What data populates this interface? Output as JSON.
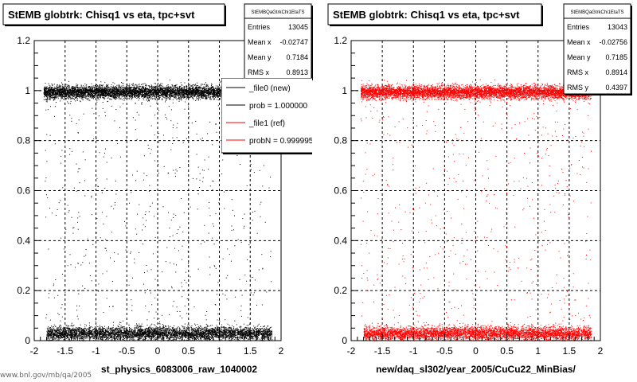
{
  "chart_data": [
    {
      "type": "scatter",
      "title": "StEMB globtrk: Chisq1 vs eta, tpc+svt",
      "xlabel": "st_physics_6083006_raw_1040002",
      "ylabel": "",
      "xlim": [
        -2,
        2
      ],
      "ylim": [
        0,
        1.2
      ],
      "x_ticks": [
        "-2",
        "-1.5",
        "-1",
        "-0.5",
        "0",
        "0.5",
        "1",
        "1.5",
        "2"
      ],
      "y_ticks": [
        "0",
        "0.2",
        "0.4",
        "0.6",
        "0.8",
        "1",
        "1.2"
      ],
      "grid": true,
      "marker_color": "#000000",
      "stats": {
        "name": "StEMBQaGtrkChi1EtaTS",
        "rows": [
          {
            "label": "Entries",
            "value": "13045"
          },
          {
            "label": "Mean x",
            "value": "-0.02747"
          },
          {
            "label": "Mean y",
            "value": "0.7184"
          },
          {
            "label": "RMS x",
            "value": "0.8913"
          }
        ]
      },
      "legend": {
        "position": "top-right",
        "entries": [
          {
            "label": "_file0 (new)",
            "color": "#000000"
          },
          {
            "label": "prob = 1.000000",
            "color": "#000000"
          },
          {
            "label": "_file1 (ref)",
            "color": "#ff0000"
          },
          {
            "label": "probN = 0.999995",
            "color": "#ff0000"
          }
        ]
      },
      "series": [
        {
          "band": "upper",
          "x_range": [
            -1.85,
            1.85
          ],
          "y_center": 0.995,
          "y_spread": 0.022,
          "points": 6500
        },
        {
          "band": "lower",
          "x_range": [
            -1.8,
            1.85
          ],
          "y_center": 0.03,
          "y_spread": 0.022,
          "points": 5000
        },
        {
          "band": "sparse",
          "x_range": [
            -1.85,
            1.85
          ],
          "y_range": [
            0.05,
            0.98
          ],
          "points": 550
        }
      ]
    },
    {
      "type": "scatter",
      "title": "StEMB globtrk: Chisq1 vs eta, tpc+svt",
      "xlabel": "new/daq_sl302/year_2005/CuCu22_MinBias/",
      "ylabel": "",
      "xlim": [
        -2,
        2
      ],
      "ylim": [
        0,
        1.2
      ],
      "x_ticks": [
        "-2",
        "-1.5",
        "-1",
        "-0.5",
        "0",
        "0.5",
        "1",
        "1.5",
        "2"
      ],
      "y_ticks": [
        "0",
        "0.2",
        "0.4",
        "0.6",
        "0.8",
        "1",
        "1.2"
      ],
      "grid": true,
      "marker_color": "#ff0000",
      "stats": {
        "name": "StEMBQaGtrkChi1EtaTS",
        "rows": [
          {
            "label": "Entries",
            "value": "13043"
          },
          {
            "label": "Mean x",
            "value": "-0.02756"
          },
          {
            "label": "Mean y",
            "value": "0.7185"
          },
          {
            "label": "RMS x",
            "value": "0.8914"
          },
          {
            "label": "RMS y",
            "value": "0.4397"
          }
        ]
      },
      "series": [
        {
          "band": "upper",
          "x_range": [
            -1.85,
            1.85
          ],
          "y_center": 0.995,
          "y_spread": 0.022,
          "points": 6500
        },
        {
          "band": "lower",
          "x_range": [
            -1.8,
            1.85
          ],
          "y_center": 0.03,
          "y_spread": 0.022,
          "points": 5000
        },
        {
          "band": "sparse",
          "x_range": [
            -1.85,
            1.85
          ],
          "y_range": [
            0.05,
            0.98
          ],
          "points": 550
        }
      ]
    }
  ],
  "footer_text": "www.bnl.gov/mb/qa/2005"
}
